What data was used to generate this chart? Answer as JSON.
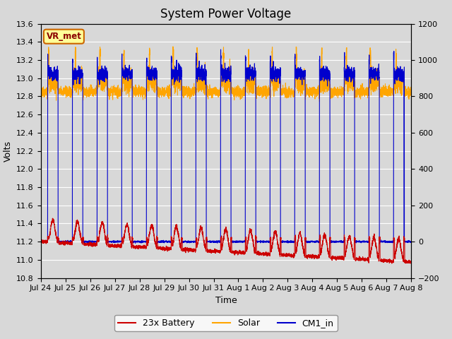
{
  "title": "System Power Voltage",
  "xlabel": "Time",
  "ylabel_left": "Volts",
  "ylim_left": [
    10.8,
    13.6
  ],
  "ylim_right": [
    -200,
    1200
  ],
  "yticks_left": [
    10.8,
    11.0,
    11.2,
    11.4,
    11.6,
    11.8,
    12.0,
    12.2,
    12.4,
    12.6,
    12.8,
    13.0,
    13.2,
    13.4,
    13.6
  ],
  "yticks_right": [
    -200,
    0,
    200,
    400,
    600,
    800,
    1000,
    1200
  ],
  "xtick_labels": [
    "Jul 24",
    "Jul 25",
    "Jul 26",
    "Jul 27",
    "Jul 28",
    "Jul 29",
    "Jul 30",
    "Jul 31",
    "Aug 1",
    "Aug 2",
    "Aug 3",
    "Aug 4",
    "Aug 5",
    "Aug 6",
    "Aug 7",
    "Aug 8"
  ],
  "color_battery": "#cc0000",
  "color_solar": "#ffa500",
  "color_cm1": "#0000cc",
  "annotation_text": "VR_met",
  "annotation_bg": "#ffff99",
  "annotation_border": "#cc6600",
  "bg_color": "#d8d8d8",
  "legend_labels": [
    "23x Battery",
    "Solar",
    "CM1_in"
  ],
  "title_fontsize": 12,
  "axis_fontsize": 9,
  "tick_fontsize": 8
}
